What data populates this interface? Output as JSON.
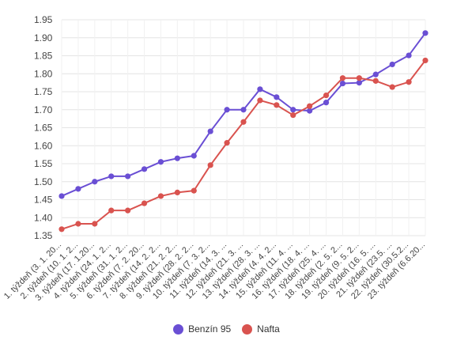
{
  "chart_data": {
    "type": "line",
    "categories": [
      "1. týždeň (3. 1. 20...",
      "2. týždeň (10. 1. 2...",
      "3. týždeň (17. 1.20...",
      "4. týždeň (24. 1. 2...",
      "5. týždeň (31. 1. 2...",
      "6. týždeň (7. 2. 20...",
      "7. týždeň (14. 2. 2...",
      "8. týždeň (21. 2. 2...",
      "9. týždeň (28. 2. 2...",
      "10. týždeň (7. 3. 2...",
      "11. týždeň (14. 3. ...",
      "12. týždeň (21. 3. ...",
      "13. týždeň (28. 3. ...",
      "14. týždeň (4. 4. 2...",
      "15. týždeň (11. 4. ...",
      "16. týždeň (18. 4. ...",
      "17. týždeň (25. 4. ...",
      "18. týždeň (2. 5. 2...",
      "19. týždeň (9. 5. 2...",
      "20. týždeň (16. 5. ...",
      "21. týždeň (23.5. ...",
      "22. týždeň (30.5.2...",
      "23. týždeň (6.6.20..."
    ],
    "series": [
      {
        "name": "Benzín 95",
        "color": "#6a4fd4",
        "values": [
          1.46,
          1.48,
          1.5,
          1.515,
          1.515,
          1.535,
          1.555,
          1.565,
          1.572,
          1.64,
          1.7,
          1.7,
          1.757,
          1.735,
          1.7,
          1.697,
          1.72,
          1.773,
          1.775,
          1.798,
          1.826,
          1.851,
          1.913
        ]
      },
      {
        "name": "Nafta",
        "color": "#d9534f",
        "values": [
          1.368,
          1.383,
          1.383,
          1.42,
          1.42,
          1.44,
          1.46,
          1.47,
          1.475,
          1.546,
          1.608,
          1.666,
          1.726,
          1.713,
          1.685,
          1.71,
          1.74,
          1.788,
          1.788,
          1.78,
          1.763,
          1.777,
          1.837
        ]
      }
    ],
    "yticks": [
      "1.35",
      "1.40",
      "1.45",
      "1.50",
      "1.55",
      "1.60",
      "1.65",
      "1.70",
      "1.75",
      "1.80",
      "1.85",
      "1.90",
      "1.95"
    ],
    "ylim": [
      1.35,
      1.95
    ],
    "grid": true,
    "legend_position": "bottom",
    "title": "",
    "xlabel": "",
    "ylabel": ""
  }
}
